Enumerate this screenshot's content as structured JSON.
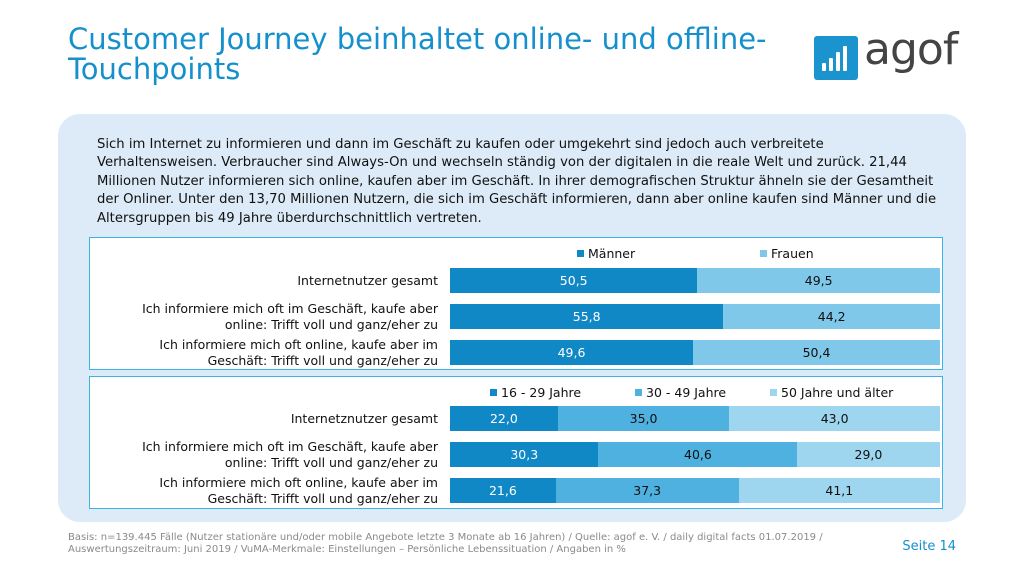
{
  "title": "Customer Journey beinhaltet online- und offline-Touchpoints",
  "logo_text": "agof",
  "intro": "Sich im Internet zu informieren und dann im Geschäft zu kaufen oder umgekehrt sind jedoch auch verbreitete Verhaltensweisen. Verbraucher sind Always-On und wechseln ständig von der digitalen in die reale Welt und zurück. 21,44 Millionen Nutzer informieren sich online, kaufen aber im Geschäft. In ihrer demografischen Struktur ähneln sie der Gesamtheit der Onliner. Unter den 13,70 Millionen Nutzern, die sich im Geschäft informieren, dann aber online kaufen sind Männer und die Altersgruppen bis 49 Jahre überdurchschnittlich vertreten.",
  "chart_data": [
    {
      "type": "bar",
      "stacked": true,
      "orientation": "horizontal",
      "legend_position": "top",
      "categories": [
        "Internetnutzer gesamt",
        "Ich informiere mich oft im Geschäft, kaufe aber online: Trifft voll und ganz/eher zu",
        "Ich informiere mich oft online, kaufe aber im Geschäft: Trifft voll und ganz/eher zu"
      ],
      "series": [
        {
          "name": "Männer",
          "color": "#1188c6",
          "values": [
            50.5,
            55.8,
            49.6
          ],
          "labels": [
            "50,5",
            "55,8",
            "49,6"
          ]
        },
        {
          "name": "Frauen",
          "color": "#7fc8ea",
          "values": [
            49.5,
            44.2,
            50.4
          ],
          "labels": [
            "49,5",
            "44,2",
            "50,4"
          ]
        }
      ],
      "xlim": [
        0,
        100
      ]
    },
    {
      "type": "bar",
      "stacked": true,
      "orientation": "horizontal",
      "legend_position": "top",
      "categories": [
        "Internetznutzer gesamt",
        "Ich informiere mich oft im Geschäft, kaufe aber online: Trifft voll und ganz/eher zu",
        "Ich informiere mich oft online, kaufe aber im Geschäft: Trifft voll und ganz/eher zu"
      ],
      "series": [
        {
          "name": "16 - 29 Jahre",
          "color": "#1188c6",
          "values": [
            22.0,
            30.3,
            21.6
          ],
          "labels": [
            "22,0",
            "30,3",
            "21,6"
          ]
        },
        {
          "name": "30 - 49 Jahre",
          "color": "#4fb1e0",
          "values": [
            35.0,
            40.6,
            37.3
          ],
          "labels": [
            "35,0",
            "40,6",
            "37,3"
          ]
        },
        {
          "name": "50 Jahre und älter",
          "color": "#9fd6ef",
          "values": [
            43.0,
            29.0,
            41.1
          ],
          "labels": [
            "43,0",
            "29,0",
            "41,1"
          ]
        }
      ],
      "xlim": [
        0,
        100
      ]
    }
  ],
  "footer": "Basis: n=139.445 Fälle (Nutzer stationäre und/oder mobile Angebote letzte 3 Monate ab 16 Jahren) / Quelle: agof e. V. / daily digital facts 01.07.2019 / Auswertungszeitraum: Juni 2019 / VuMA-Merkmale: Einstellungen – Persönliche Lebenssituation / Angaben in %",
  "page_label": "Seite 14"
}
